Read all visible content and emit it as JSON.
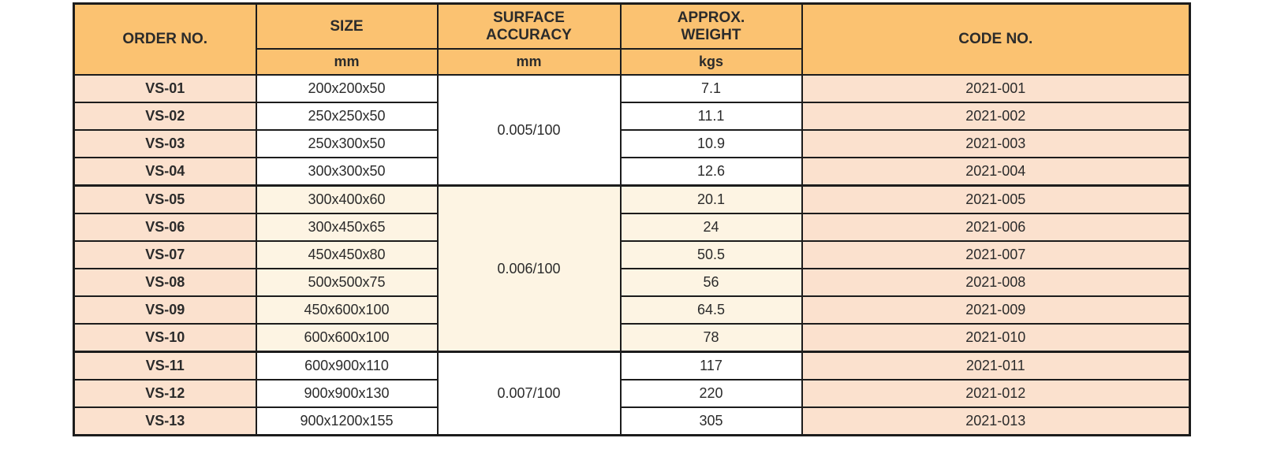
{
  "table": {
    "headers": {
      "order_no": "ORDER NO.",
      "size": "SIZE",
      "surface_accuracy": "SURFACE\nACCURACY",
      "approx_weight": "APPROX.\nWEIGHT",
      "code_no": "CODE NO.",
      "size_unit": "mm",
      "surface_accuracy_unit": "mm",
      "weight_unit": "kgs"
    },
    "groups": [
      {
        "accuracy": "0.005/100",
        "tone": "white",
        "rows": [
          {
            "order": "VS-01",
            "size": "200x200x50",
            "weight": "7.1",
            "code": "2021-001"
          },
          {
            "order": "VS-02",
            "size": "250x250x50",
            "weight": "11.1",
            "code": "2021-002"
          },
          {
            "order": "VS-03",
            "size": "250x300x50",
            "weight": "10.9",
            "code": "2021-003"
          },
          {
            "order": "VS-04",
            "size": "300x300x50",
            "weight": "12.6",
            "code": "2021-004"
          }
        ]
      },
      {
        "accuracy": "0.006/100",
        "tone": "cream",
        "rows": [
          {
            "order": "VS-05",
            "size": "300x400x60",
            "weight": "20.1",
            "code": "2021-005"
          },
          {
            "order": "VS-06",
            "size": "300x450x65",
            "weight": "24",
            "code": "2021-006"
          },
          {
            "order": "VS-07",
            "size": "450x450x80",
            "weight": "50.5",
            "code": "2021-007"
          },
          {
            "order": "VS-08",
            "size": "500x500x75",
            "weight": "56",
            "code": "2021-008"
          },
          {
            "order": "VS-09",
            "size": "450x600x100",
            "weight": "64.5",
            "code": "2021-009"
          },
          {
            "order": "VS-10",
            "size": "600x600x100",
            "weight": "78",
            "code": "2021-010"
          }
        ]
      },
      {
        "accuracy": "0.007/100",
        "tone": "white",
        "rows": [
          {
            "order": "VS-11",
            "size": "600x900x110",
            "weight": "117",
            "code": "2021-011"
          },
          {
            "order": "VS-12",
            "size": "900x900x130",
            "weight": "220",
            "code": "2021-012"
          },
          {
            "order": "VS-13",
            "size": "900x1200x155",
            "weight": "305",
            "code": "2021-013"
          }
        ]
      }
    ]
  },
  "colors": {
    "header_orange": "#fbc271",
    "peach": "#fbe1ce",
    "cream": "#fdf4e3",
    "border": "#1c1c1c",
    "text": "#2b2b2b"
  }
}
